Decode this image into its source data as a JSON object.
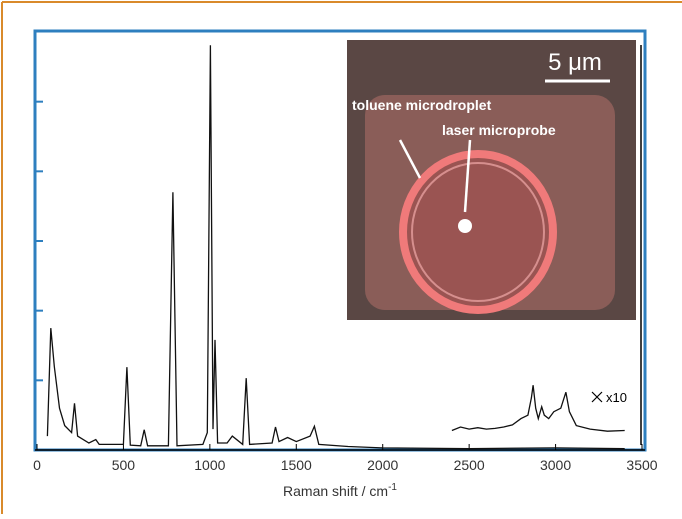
{
  "chart_data": {
    "type": "line",
    "xlabel": "Raman shift / cm",
    "xlabel_sup": "-1",
    "annotations": {
      "scale": "5 μm",
      "droplet": "toluene microdroplet",
      "probe": "laser microprobe",
      "magnification": "x10"
    },
    "xlim": [
      0,
      3500
    ],
    "xticks": [
      0,
      500,
      1000,
      1500,
      2000,
      2500,
      3000,
      3500
    ],
    "ylim": [
      0,
      6
    ],
    "yticks": [
      1,
      2,
      3,
      4,
      5
    ],
    "ytick_labels": false,
    "series": [
      {
        "color": "#111111",
        "x": [
          60,
          80,
          100,
          130,
          160,
          200,
          217,
          235,
          300,
          340,
          360,
          500,
          520,
          540,
          600,
          620,
          640,
          760,
          786,
          810,
          960,
          985,
          1003,
          1018,
          1030,
          1045,
          1100,
          1130,
          1190,
          1210,
          1230,
          1360,
          1380,
          1400,
          1450,
          1500,
          1580,
          1605,
          1630,
          1800,
          2000,
          2500,
          3000,
          3400
        ],
        "values": [
          0.2,
          1.75,
          1.2,
          0.6,
          0.35,
          0.25,
          0.67,
          0.2,
          0.1,
          0.15,
          0.08,
          0.08,
          1.19,
          0.07,
          0.06,
          0.29,
          0.06,
          0.06,
          3.7,
          0.06,
          0.08,
          0.25,
          5.81,
          0.3,
          1.58,
          0.1,
          0.1,
          0.2,
          0.08,
          1.03,
          0.08,
          0.1,
          0.33,
          0.12,
          0.18,
          0.12,
          0.2,
          0.34,
          0.08,
          0.05,
          0.03,
          0.02,
          0.03,
          0.02
        ]
      },
      {
        "color": "#111111",
        "x": [
          2400,
          2450,
          2500,
          2550,
          2600,
          2650,
          2700,
          2750,
          2800,
          2840,
          2860,
          2870,
          2885,
          2900,
          2920,
          2935,
          2960,
          2990,
          3030,
          3060,
          3080,
          3120,
          3200,
          3300,
          3400
        ],
        "values": [
          0.28,
          0.33,
          0.3,
          0.32,
          0.3,
          0.31,
          0.33,
          0.36,
          0.45,
          0.5,
          0.75,
          0.93,
          0.6,
          0.45,
          0.62,
          0.5,
          0.45,
          0.55,
          0.6,
          0.83,
          0.55,
          0.35,
          0.3,
          0.27,
          0.28
        ]
      }
    ]
  }
}
